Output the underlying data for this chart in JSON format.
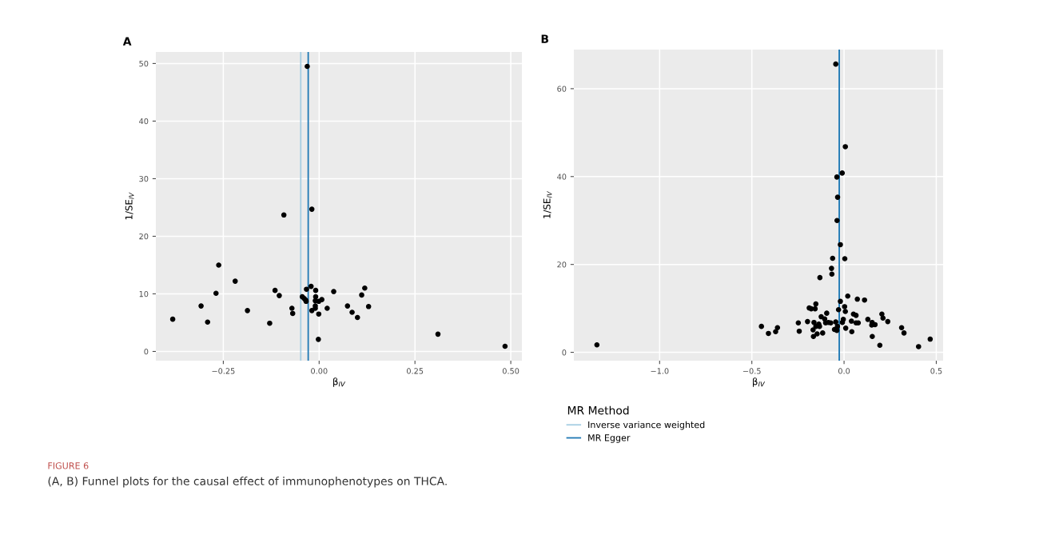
{
  "chart_data": [
    {
      "type": "scatter",
      "title": "A",
      "xlabel": "β$_{IV}$",
      "ylabel": "1/SE$_{IV}$",
      "marker": "circle",
      "grid": true,
      "legend": false,
      "xlim": [
        -0.426,
        0.529
      ],
      "ylim": [
        -1.6,
        52.0
      ],
      "xticks": [
        {
          "value": -0.25,
          "label": "−0.25"
        },
        {
          "value": 0,
          "label": "0.00"
        },
        {
          "value": 0.25,
          "label": "0.25"
        },
        {
          "value": 0.5,
          "label": "0.50"
        }
      ],
      "yticks": [
        0,
        10,
        20,
        30,
        40,
        50
      ],
      "series": [
        {
          "color": "#000000",
          "x": [
            -0.031,
            -0.019,
            -0.092,
            -0.262,
            -0.219,
            -0.269,
            -0.382,
            -0.308,
            -0.291,
            -0.187,
            -0.115,
            -0.104,
            -0.129,
            -0.071,
            -0.069,
            -0.033,
            -0.021,
            -0.044,
            -0.039,
            -0.035,
            -0.034,
            -0.019,
            -0.009,
            -0.009,
            -0.01,
            -0.01,
            -0.01,
            -0.001,
            0.007,
            -0.001,
            -0.002,
            0.021,
            0.038,
            0.074,
            0.086,
            0.1,
            0.111,
            0.119,
            0.129,
            0.31,
            0.485
          ],
          "values": [
            49.5,
            24.7,
            23.7,
            15.0,
            12.2,
            10.1,
            5.6,
            7.9,
            5.1,
            7.1,
            10.6,
            9.7,
            4.9,
            7.5,
            6.6,
            10.8,
            11.3,
            9.5,
            9.2,
            8.9,
            8.7,
            7.1,
            10.6,
            9.5,
            8.8,
            7.9,
            7.5,
            8.7,
            9.0,
            6.5,
            2.1,
            7.5,
            10.4,
            7.9,
            6.8,
            5.9,
            9.8,
            11.0,
            7.8,
            3.0,
            0.9
          ]
        }
      ],
      "ref_lines": [
        {
          "axis": "x",
          "value": -0.048,
          "color": "#a6cee3"
        },
        {
          "axis": "x",
          "value": -0.0285,
          "color": "#1f78b4"
        }
      ],
      "annotations": [
        "FIGURE 6",
        "(A, B) Funnel plots for the causal effect of immunophenotypes on THCA."
      ]
    },
    {
      "type": "scatter",
      "title": "B",
      "xlabel": "β$_{IV}$",
      "ylabel": "1/SE$_{IV}$",
      "marker": "circle",
      "grid": true,
      "legend": "bottom",
      "legend_title": "MR Method",
      "xlim": [
        -1.465,
        0.537
      ],
      "ylim": [
        -1.9,
        68.9
      ],
      "xticks": [
        {
          "value": -1.0,
          "label": "−1.0"
        },
        {
          "value": -0.5,
          "label": "−0.5"
        },
        {
          "value": 0,
          "label": "0.0"
        },
        {
          "value": 0.5,
          "label": "0.5"
        }
      ],
      "yticks": [
        0,
        20,
        40,
        60
      ],
      "series": [
        {
          "color": "#000000",
          "x": [
            -1.34,
            -0.045,
            0.007,
            -0.01,
            -0.039,
            -0.035,
            -0.038,
            -0.02,
            -0.062,
            0.004,
            -0.068,
            -0.066,
            -0.131,
            0.02,
            0.072,
            0.111,
            -0.02,
            -0.153,
            -0.189,
            -0.178,
            -0.157,
            0.003,
            -0.03,
            0.007,
            -0.094,
            0.051,
            0.065,
            0.205,
            0.211,
            -0.124,
            -0.105,
            0.129,
            -0.004,
            0.04,
            0.237,
            -0.248,
            -0.198,
            -0.163,
            -0.1,
            -0.085,
            -0.072,
            -0.045,
            -0.009,
            0.065,
            0.077,
            0.152,
            0.15,
            0.168,
            -0.137,
            -0.153,
            -0.133,
            -0.036,
            -0.448,
            -0.361,
            0.009,
            0.312,
            0.325,
            -0.168,
            -0.052,
            -0.039,
            0.042,
            -0.243,
            -0.371,
            -0.41,
            -0.146,
            -0.116,
            -0.166,
            0.153,
            0.194,
            0.404,
            0.467
          ],
          "values": [
            1.7,
            65.6,
            46.8,
            40.8,
            39.9,
            35.3,
            30.0,
            24.5,
            21.4,
            21.3,
            19.1,
            17.8,
            17.0,
            12.8,
            12.1,
            11.9,
            11.6,
            11.0,
            10.1,
            9.9,
            9.9,
            10.4,
            9.7,
            9.3,
            8.9,
            8.7,
            8.4,
            8.7,
            7.8,
            8.1,
            7.6,
            7.5,
            7.5,
            7.1,
            7.0,
            6.7,
            7.0,
            6.8,
            6.7,
            6.8,
            6.7,
            6.9,
            6.8,
            6.7,
            6.7,
            6.8,
            6.2,
            6.3,
            6.4,
            5.9,
            5.9,
            5.9,
            5.9,
            5.6,
            5.5,
            5.6,
            4.4,
            5.1,
            5.2,
            5.0,
            4.7,
            4.8,
            4.7,
            4.3,
            4.2,
            4.4,
            3.6,
            3.6,
            1.6,
            1.3,
            3.0
          ]
        }
      ],
      "ref_lines": [
        {
          "axis": "x",
          "value": -0.027,
          "color": "#a6cee3",
          "label": "Inverse variance weighted"
        },
        {
          "axis": "x",
          "value": -0.026,
          "color": "#1f78b4",
          "label": "MR Egger"
        }
      ]
    }
  ]
}
